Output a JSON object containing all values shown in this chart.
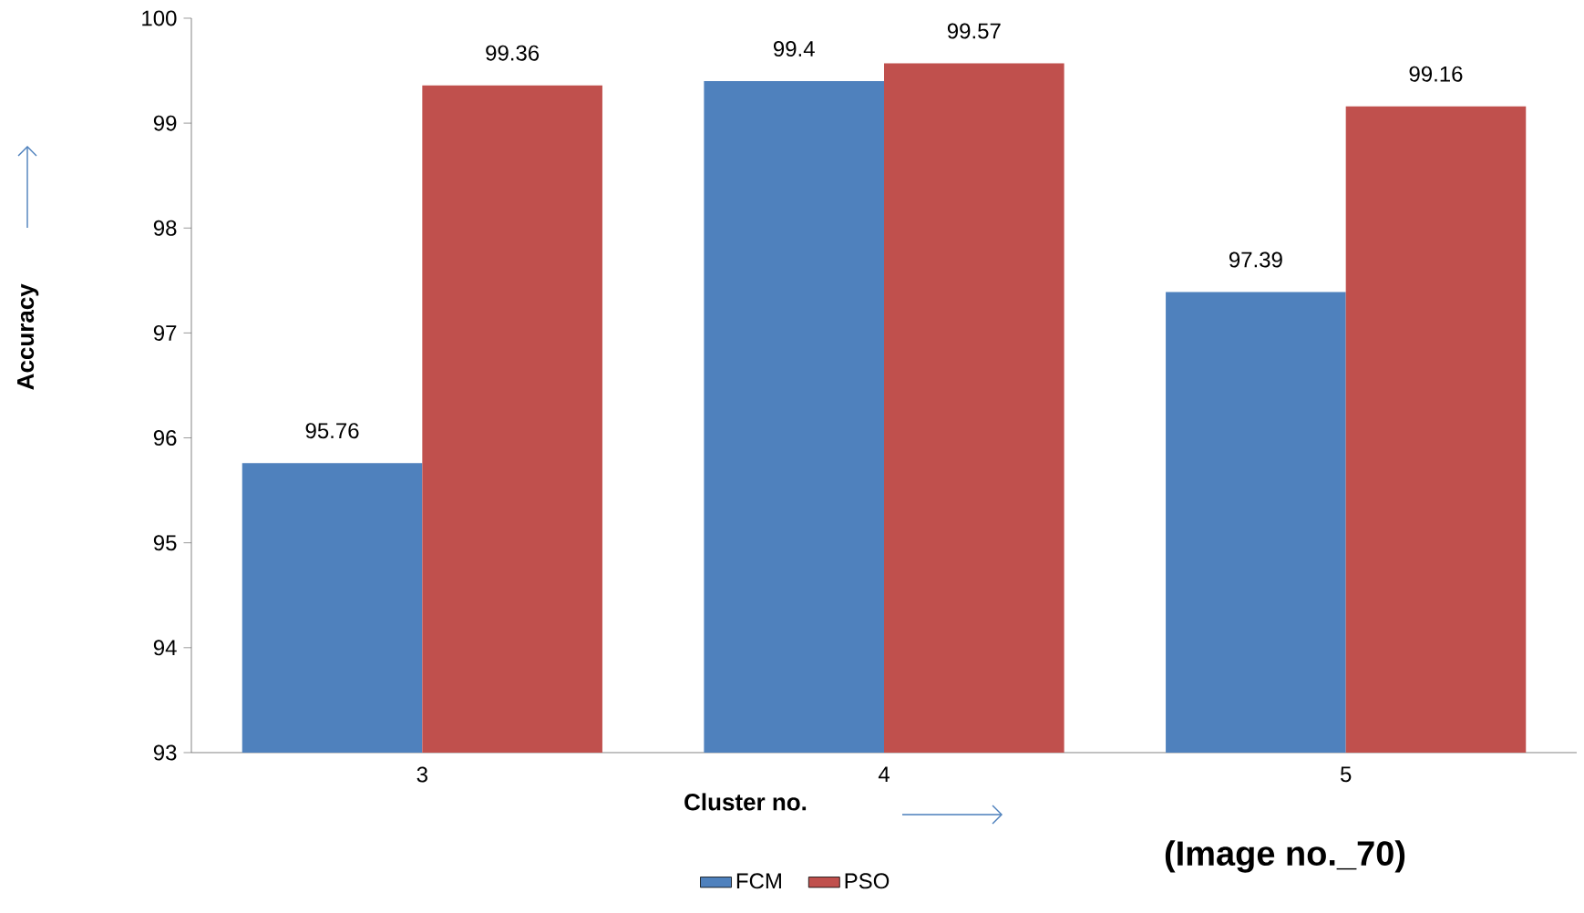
{
  "chart_data": {
    "type": "bar",
    "xlabel": "Cluster no.",
    "ylabel": "Accuracy",
    "categories": [
      "3",
      "4",
      "5"
    ],
    "series": [
      {
        "name": "FCM",
        "color": "#4f81bd",
        "values": [
          95.76,
          99.4,
          97.39
        ]
      },
      {
        "name": "PSO",
        "color": "#c0504d",
        "values": [
          99.36,
          99.57,
          99.16
        ]
      }
    ],
    "ylim": [
      93,
      100
    ],
    "yticks": [
      93,
      94,
      95,
      96,
      97,
      98,
      99,
      100
    ],
    "data_labels": true,
    "legend": "bottom",
    "grid": false,
    "annotations": [
      "(Image no._70)"
    ]
  }
}
